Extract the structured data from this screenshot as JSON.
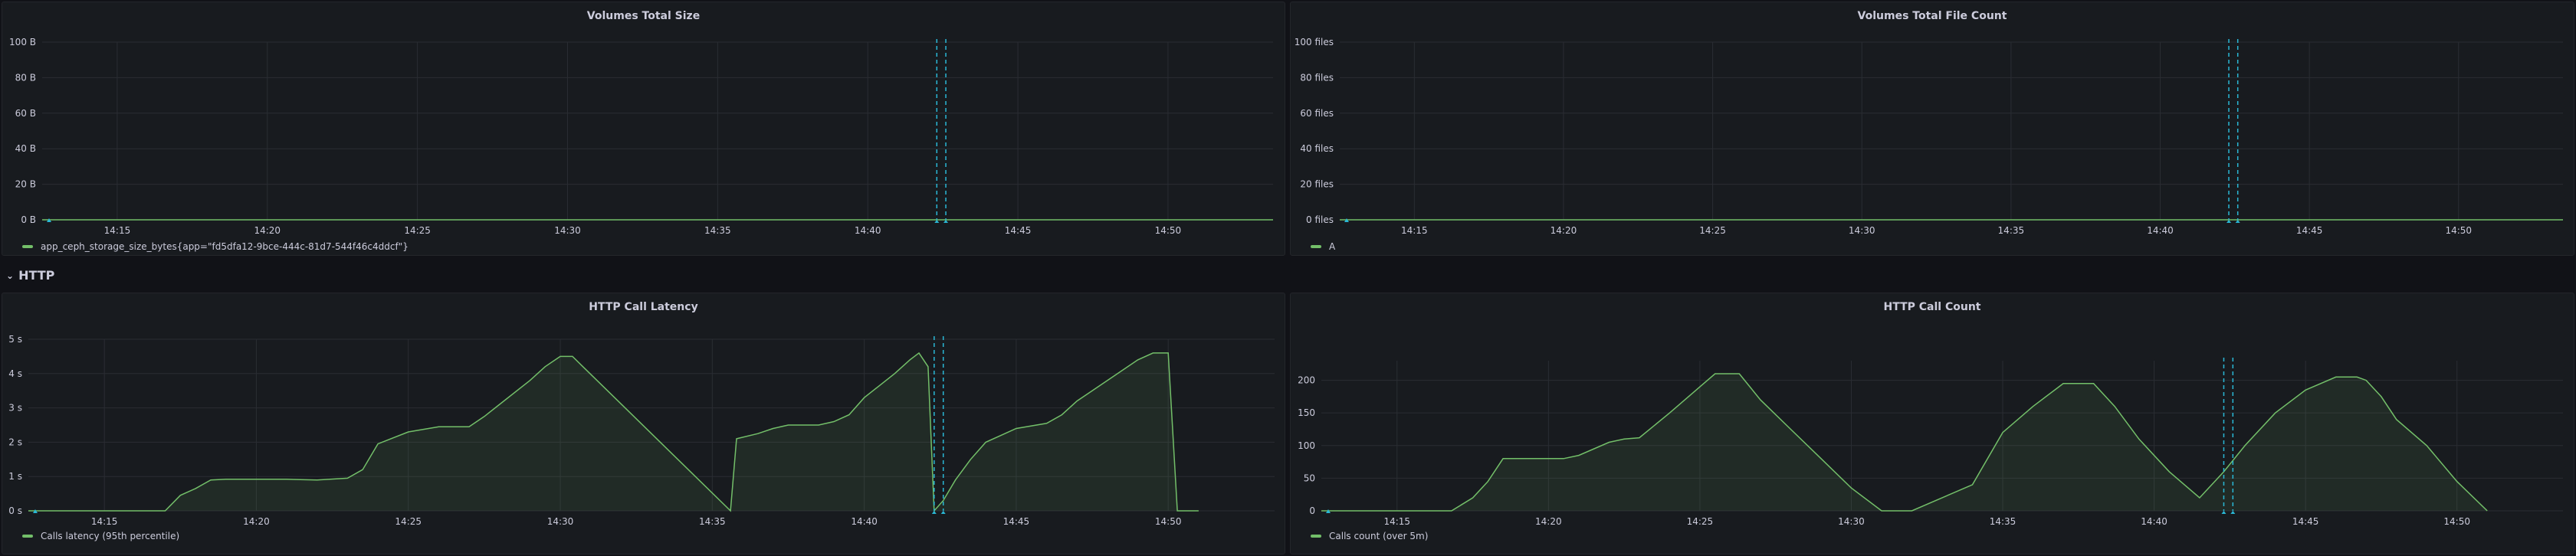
{
  "row": {
    "title": "HTTP"
  },
  "colors": {
    "series": "#73bf69",
    "annotation": "#2ab8d6",
    "grid": "#2a2d33",
    "axis_text": "#ccccdc"
  },
  "panels": [
    {
      "id": "volumes-size",
      "title": "Volumes Total Size",
      "legend": "app_ceph_storage_size_bytes{app=\"fd5dfa12-9bce-444c-81d7-544f46c4ddcf\"}",
      "chart_data": {
        "type": "area",
        "title": "Volumes Total Size",
        "yticks": [
          "0 B",
          "20 B",
          "40 B",
          "60 B",
          "80 B",
          "100 B"
        ],
        "ylim": [
          0,
          100
        ],
        "xticks": [
          "14:15",
          "14:20",
          "14:25",
          "14:30",
          "14:35",
          "14:40",
          "14:45",
          "14:50"
        ],
        "xlim": [
          12.5,
          53.5
        ],
        "annotations": [
          42.3,
          42.6
        ],
        "series": [
          {
            "name": "app_ceph_storage_size_bytes{app=\"fd5dfa12-9bce-444c-81d7-544f46c4ddcf\"}",
            "x": [
              12.5,
              53.5
            ],
            "y": [
              0,
              0
            ]
          }
        ]
      }
    },
    {
      "id": "volumes-count",
      "title": "Volumes Total File Count",
      "legend": "A",
      "chart_data": {
        "type": "area",
        "title": "Volumes Total File Count",
        "yticks": [
          "0 files",
          "20 files",
          "40 files",
          "60 files",
          "80 files",
          "100 files"
        ],
        "ylim": [
          0,
          100
        ],
        "xticks": [
          "14:15",
          "14:20",
          "14:25",
          "14:30",
          "14:35",
          "14:40",
          "14:45",
          "14:50"
        ],
        "xlim": [
          12.5,
          53.5
        ],
        "annotations": [
          42.3,
          42.6
        ],
        "series": [
          {
            "name": "A",
            "x": [
              12.5,
              53.5
            ],
            "y": [
              0,
              0
            ]
          }
        ]
      }
    },
    {
      "id": "http-latency",
      "title": "HTTP Call Latency",
      "legend": "Calls latency (95th percentile)",
      "chart_data": {
        "type": "area",
        "title": "HTTP Call Latency",
        "yticks": [
          "0 s",
          "1 s",
          "2 s",
          "3 s",
          "4 s",
          "5 s"
        ],
        "ylim": [
          0,
          5
        ],
        "xticks": [
          "14:15",
          "14:20",
          "14:25",
          "14:30",
          "14:35",
          "14:40",
          "14:45",
          "14:50"
        ],
        "xlim": [
          12.5,
          53.5
        ],
        "annotations": [
          42.3,
          42.6
        ],
        "series": [
          {
            "name": "Calls latency (95th percentile)",
            "x": [
              12.5,
              17.0,
              17.5,
              18.0,
              18.5,
              19.0,
              20.0,
              21.0,
              22.0,
              23.0,
              23.5,
              24.0,
              25.0,
              26.0,
              27.0,
              27.5,
              28.0,
              29.0,
              29.5,
              30.0,
              30.4,
              35.6,
              35.8,
              36.5,
              37.0,
              37.5,
              38.5,
              39.0,
              39.5,
              40.0,
              41.0,
              41.5,
              41.8,
              42.1,
              42.3,
              42.6,
              43.0,
              43.5,
              44.0,
              44.5,
              45.0,
              46.0,
              46.5,
              47.0,
              48.0,
              49.0,
              49.5,
              50.0,
              50.3,
              51.0
            ],
            "y": [
              0,
              0,
              0.45,
              0.65,
              0.9,
              0.92,
              0.92,
              0.92,
              0.9,
              0.95,
              1.2,
              1.95,
              2.3,
              2.45,
              2.45,
              2.75,
              3.1,
              3.8,
              4.2,
              4.5,
              4.5,
              0,
              2.1,
              2.25,
              2.4,
              2.5,
              2.5,
              2.6,
              2.8,
              3.3,
              4.0,
              4.4,
              4.6,
              4.2,
              0,
              0.3,
              0.9,
              1.5,
              2.0,
              2.2,
              2.4,
              2.55,
              2.8,
              3.2,
              3.8,
              4.4,
              4.6,
              4.6,
              0,
              0
            ]
          }
        ]
      }
    },
    {
      "id": "http-count",
      "title": "HTTP Call Count",
      "legend": "Calls count (over 5m)",
      "chart_data": {
        "type": "area",
        "title": "HTTP Call Count",
        "yticks": [
          "0",
          "50",
          "100",
          "150",
          "200"
        ],
        "ylim": [
          0,
          230
        ],
        "xticks": [
          "14:15",
          "14:20",
          "14:25",
          "14:30",
          "14:35",
          "14:40",
          "14:45",
          "14:50"
        ],
        "xlim": [
          12.5,
          53.5
        ],
        "annotations": [
          42.3,
          42.6
        ],
        "series": [
          {
            "name": "Calls count (over 5m)",
            "x": [
              12.5,
              16.8,
              17.5,
              18.0,
              18.5,
              19.0,
              20.0,
              20.5,
              21.0,
              22.0,
              22.5,
              23.0,
              24.0,
              25.0,
              25.5,
              26.0,
              26.3,
              27.0,
              28.0,
              29.0,
              30.0,
              31.0,
              31.5,
              32.0,
              34.0,
              35.0,
              36.0,
              37.0,
              38.0,
              38.7,
              39.5,
              40.5,
              41.5,
              42.0,
              42.3,
              43.0,
              44.0,
              45.0,
              46.0,
              46.7,
              47.0,
              47.5,
              48.0,
              49.0,
              50.0,
              51.0
            ],
            "y": [
              0,
              0,
              20,
              45,
              80,
              80,
              80,
              80,
              85,
              105,
              110,
              112,
              150,
              190,
              210,
              210,
              210,
              170,
              125,
              80,
              35,
              0,
              0,
              0,
              40,
              120,
              160,
              195,
              195,
              160,
              110,
              60,
              20,
              45,
              60,
              100,
              150,
              185,
              205,
              205,
              200,
              175,
              140,
              100,
              45,
              0
            ]
          }
        ]
      }
    }
  ]
}
